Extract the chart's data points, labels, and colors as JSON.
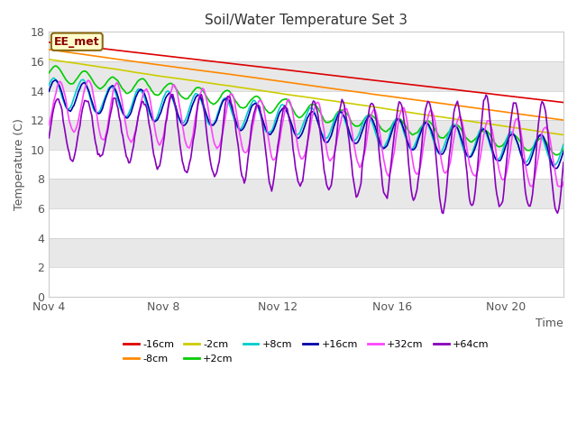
{
  "title": "Soil/Water Temperature Set 3",
  "xlabel": "Time",
  "ylabel": "Temperature (C)",
  "ylim": [
    0,
    18
  ],
  "yticks": [
    0,
    2,
    4,
    6,
    8,
    10,
    12,
    14,
    16,
    18
  ],
  "xlim": [
    0,
    18
  ],
  "xtick_labels": [
    "Nov 4",
    "Nov 8",
    "Nov 12",
    "Nov 16",
    "Nov 20"
  ],
  "xtick_positions": [
    0,
    4,
    8,
    12,
    16
  ],
  "background_color": "#ffffff",
  "annotation_text": "EE_met",
  "annotation_bg": "#ffffcc",
  "annotation_border": "#8b6914",
  "band_colors": [
    "#ffffff",
    "#e8e8e8"
  ],
  "series": [
    {
      "label": "-16cm",
      "color": "#dd0000"
    },
    {
      "label": "-8cm",
      "color": "#ff8800"
    },
    {
      "label": "-2cm",
      "color": "#cccc00"
    },
    {
      "label": "+2cm",
      "color": "#00cc00"
    },
    {
      "label": "+8cm",
      "color": "#00cccc"
    },
    {
      "label": "+16cm",
      "color": "#0000aa"
    },
    {
      "label": "+32cm",
      "color": "#ff44ff"
    },
    {
      "label": "+64cm",
      "color": "#8800bb"
    }
  ],
  "figsize": [
    6.4,
    4.8
  ],
  "dpi": 100
}
